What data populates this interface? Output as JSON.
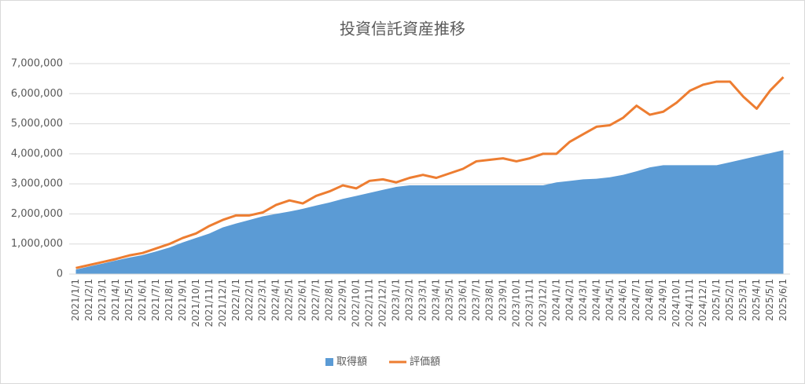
{
  "chart_data": {
    "type": "area",
    "title": "投資信託資産推移",
    "categories": [
      "2021/1/1",
      "2021/2/1",
      "2021/3/1",
      "2021/4/1",
      "2021/5/1",
      "2021/6/1",
      "2021/7/1",
      "2021/8/1",
      "2021/9/1",
      "2021/10/1",
      "2021/11/1",
      "2021/12/1",
      "2022/1/1",
      "2022/2/1",
      "2022/3/1",
      "2022/4/1",
      "2022/5/1",
      "2022/6/1",
      "2022/7/1",
      "2022/8/1",
      "2022/9/1",
      "2022/10/1",
      "2022/11/1",
      "2022/12/1",
      "2023/1/1",
      "2023/2/1",
      "2023/3/1",
      "2023/4/1",
      "2023/5/1",
      "2023/6/1",
      "2023/7/1",
      "2023/8/1",
      "2023/9/1",
      "2023/10/1",
      "2023/11/1",
      "2023/12/1",
      "2024/1/1",
      "2024/2/1",
      "2024/3/1",
      "2024/4/1",
      "2024/5/1",
      "2024/6/1",
      "2024/7/1",
      "2024/8/1",
      "2024/9/1",
      "2024/10/1",
      "2024/11/1",
      "2024/12/1",
      "2025/1/1",
      "2025/2/1",
      "2025/3/1",
      "2025/4/1",
      "2025/5/1",
      "2025/6/1"
    ],
    "series": [
      {
        "name": "取得額",
        "type": "area",
        "color": "#5b9bd5",
        "values": [
          150000,
          250000,
          350000,
          450000,
          550000,
          630000,
          750000,
          880000,
          1050000,
          1200000,
          1350000,
          1550000,
          1680000,
          1800000,
          1920000,
          2000000,
          2080000,
          2170000,
          2280000,
          2380000,
          2500000,
          2600000,
          2700000,
          2800000,
          2900000,
          2950000,
          2950000,
          2950000,
          2950000,
          2950000,
          2950000,
          2950000,
          2950000,
          2950000,
          2950000,
          2950000,
          3050000,
          3100000,
          3150000,
          3170000,
          3220000,
          3300000,
          3420000,
          3550000,
          3620000,
          3620000,
          3620000,
          3620000,
          3620000,
          3720000,
          3820000,
          3920000,
          4020000,
          4120000
        ]
      },
      {
        "name": "評価額",
        "type": "line",
        "color": "#ed7d31",
        "values": [
          200000,
          300000,
          400000,
          500000,
          620000,
          700000,
          850000,
          1000000,
          1200000,
          1350000,
          1600000,
          1800000,
          1950000,
          1950000,
          2050000,
          2300000,
          2450000,
          2350000,
          2600000,
          2750000,
          2950000,
          2850000,
          3100000,
          3150000,
          3050000,
          3200000,
          3300000,
          3200000,
          3350000,
          3500000,
          3750000,
          3800000,
          3850000,
          3750000,
          3850000,
          4000000,
          4000000,
          4400000,
          4650000,
          4900000,
          4950000,
          5200000,
          5600000,
          5300000,
          5400000,
          5700000,
          6100000,
          6300000,
          6400000,
          6400000,
          5900000,
          5500000,
          6100000,
          6550000
        ]
      }
    ],
    "ylim": [
      0,
      7000000
    ],
    "yticks": [
      0,
      {
        "value": 1000000,
        "label": "1,000,000"
      },
      {
        "value": 2000000,
        "label": "2,000,000"
      },
      {
        "value": 3000000,
        "label": "3,000,000"
      },
      {
        "value": 4000000,
        "label": "4,000,000"
      },
      {
        "value": 5000000,
        "label": "5,000,000"
      },
      {
        "value": 6000000,
        "label": "6,000,000"
      },
      {
        "value": 7000000,
        "label": "7,000,000"
      }
    ],
    "grid": true,
    "legend": "bottom"
  }
}
